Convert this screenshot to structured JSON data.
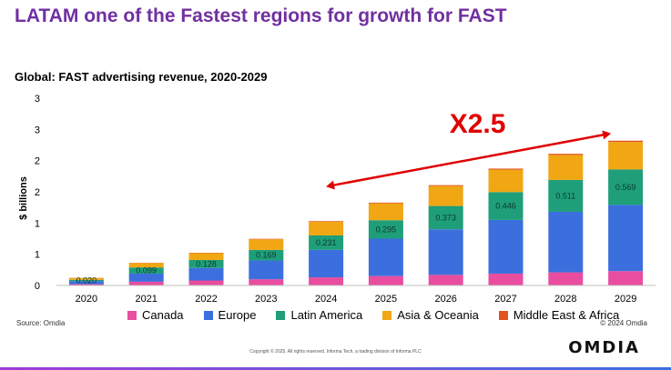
{
  "header": {
    "title": "LATAM one of the Fastest regions for growth for FAST"
  },
  "chart_data": {
    "type": "bar",
    "stacked": true,
    "title": "Global: FAST advertising revenue, 2020-2029",
    "ylabel": "$ billions",
    "xlabel": "",
    "categories": [
      "2020",
      "2021",
      "2022",
      "2023",
      "2024",
      "2025",
      "2026",
      "2027",
      "2028",
      "2029"
    ],
    "y_tick_labels": [
      "0",
      "1",
      "1",
      "2",
      "2",
      "3",
      "3"
    ],
    "ylim": [
      0,
      3
    ],
    "series": [
      {
        "name": "Canada",
        "color": "#e84d9f",
        "values": [
          0.02,
          0.06,
          0.08,
          0.1,
          0.13,
          0.15,
          0.17,
          0.19,
          0.21,
          0.23
        ]
      },
      {
        "name": "Europe",
        "color": "#3c6fde",
        "values": [
          0.05,
          0.13,
          0.2,
          0.3,
          0.44,
          0.6,
          0.73,
          0.86,
          0.97,
          1.06
        ]
      },
      {
        "name": "Latin America",
        "color": "#1f9e7a",
        "values": [
          0.02,
          0.099,
          0.128,
          0.169,
          0.231,
          0.295,
          0.373,
          0.446,
          0.511,
          0.569
        ]
      },
      {
        "name": "Asia & Oceania",
        "color": "#f0a713",
        "values": [
          0.03,
          0.07,
          0.11,
          0.17,
          0.22,
          0.27,
          0.32,
          0.36,
          0.4,
          0.44
        ]
      },
      {
        "name": "Middle East & Africa",
        "color": "#e0531f",
        "values": [
          0.002,
          0.004,
          0.006,
          0.008,
          0.01,
          0.012,
          0.014,
          0.016,
          0.018,
          0.02
        ]
      }
    ],
    "data_labels": {
      "series": "Latin America",
      "labels": [
        "0.020",
        "0.099",
        "0.128",
        "0.169",
        "0.231",
        "0.295",
        "0.373",
        "0.446",
        "0.511",
        "0.569"
      ]
    },
    "annotation": {
      "text": "X2.5",
      "color": "#e00000",
      "from": "2024",
      "to": "2029"
    },
    "legend_position": "bottom",
    "grid": false
  },
  "source": "Source: Omdia",
  "copyright": "© 2024 Omdia",
  "footer": "Copyright © 2025. All rights reserved. Informa Tech, a trading division of Informa PLC",
  "logo": "OMDIA",
  "colors": {
    "title": "#7030a0",
    "bottom_line_start": "#a03bd4",
    "bottom_line_end": "#3c6fde"
  }
}
